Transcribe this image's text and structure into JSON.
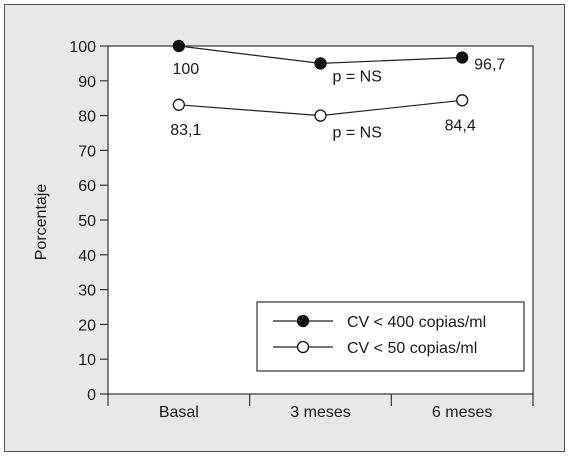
{
  "chart_data": {
    "type": "line",
    "categories": [
      "Basal",
      "3 meses",
      "6 meses"
    ],
    "ylabel": "Porcentaje",
    "xlabel": "",
    "ylim": [
      0,
      100
    ],
    "yticks": [
      0,
      10,
      20,
      30,
      40,
      50,
      60,
      70,
      80,
      90,
      100
    ],
    "grid": false,
    "legend_position": "bottom-right",
    "series": [
      {
        "name": "CV < 400 copias/ml",
        "marker": "filled-circle",
        "values": [
          100,
          95,
          96.7
        ],
        "labels": [
          "100",
          "p = NS",
          "96,7"
        ]
      },
      {
        "name": "CV < 50 copias/ml",
        "marker": "open-circle",
        "values": [
          83.1,
          80,
          84.4
        ],
        "labels": [
          "83,1",
          "p = NS",
          "84,4"
        ]
      }
    ]
  }
}
